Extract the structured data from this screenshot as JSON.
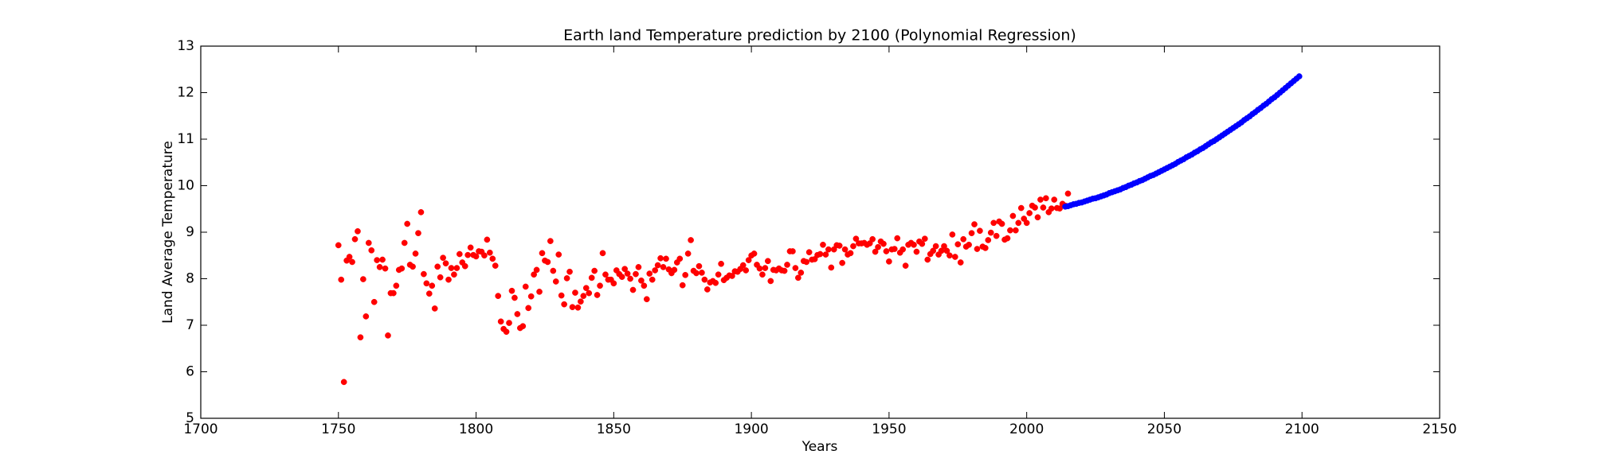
{
  "chart_data": {
    "type": "scatter",
    "title": "Earth land Temperature prediction by 2100 (Polynomial Regression)",
    "x_label": "Years",
    "y_label": "Land Average Temperature",
    "xlim": [
      1700,
      2150
    ],
    "xticks": [
      1700,
      1750,
      1800,
      1850,
      1900,
      1950,
      2000,
      2050,
      2100,
      2150
    ],
    "ylim": [
      5,
      13
    ],
    "yticks": [
      5,
      6,
      7,
      8,
      9,
      10,
      11,
      12,
      13
    ],
    "series": [
      {
        "color": "#ff0000",
        "x": [
          1750,
          1751,
          1752,
          1753,
          1754,
          1755,
          1756,
          1757,
          1758,
          1759,
          1760,
          1761,
          1762,
          1763,
          1764,
          1765,
          1766,
          1767,
          1768,
          1769,
          1770,
          1771,
          1772,
          1773,
          1774,
          1775,
          1776,
          1777,
          1778,
          1779,
          1780,
          1781,
          1782,
          1783,
          1784,
          1785,
          1786,
          1787,
          1788,
          1789,
          1790,
          1791,
          1792,
          1793,
          1794,
          1795,
          1796,
          1797,
          1798,
          1799,
          1800,
          1801,
          1802,
          1803,
          1804,
          1805,
          1806,
          1807,
          1808,
          1809,
          1810,
          1811,
          1812,
          1813,
          1814,
          1815,
          1816,
          1817,
          1818,
          1819,
          1820,
          1821,
          1822,
          1823,
          1824,
          1825,
          1826,
          1827,
          1828,
          1829,
          1830,
          1831,
          1832,
          1833,
          1834,
          1835,
          1836,
          1837,
          1838,
          1839,
          1840,
          1841,
          1842,
          1843,
          1844,
          1845,
          1846,
          1847,
          1848,
          1849,
          1850,
          1851,
          1852,
          1853,
          1854,
          1855,
          1856,
          1857,
          1858,
          1859,
          1860,
          1861,
          1862,
          1863,
          1864,
          1865,
          1866,
          1867,
          1868,
          1869,
          1870,
          1871,
          1872,
          1873,
          1874,
          1875,
          1876,
          1877,
          1878,
          1879,
          1880,
          1881,
          1882,
          1883,
          1884,
          1885,
          1886,
          1887,
          1888,
          1889,
          1890,
          1891,
          1892,
          1893,
          1894,
          1895,
          1896,
          1897,
          1898,
          1899,
          1900,
          1901,
          1902,
          1903,
          1904,
          1905,
          1906,
          1907,
          1908,
          1909,
          1910,
          1911,
          1912,
          1913,
          1914,
          1915,
          1916,
          1917,
          1918,
          1919,
          1920,
          1921,
          1922,
          1923,
          1924,
          1925,
          1926,
          1927,
          1928,
          1929,
          1930,
          1931,
          1932,
          1933,
          1934,
          1935,
          1936,
          1937,
          1938,
          1939,
          1940,
          1941,
          1942,
          1943,
          1944,
          1945,
          1946,
          1947,
          1948,
          1949,
          1950,
          1951,
          1952,
          1953,
          1954,
          1955,
          1956,
          1957,
          1958,
          1959,
          1960,
          1961,
          1962,
          1963,
          1964,
          1965,
          1966,
          1967,
          1968,
          1969,
          1970,
          1971,
          1972,
          1973,
          1974,
          1975,
          1976,
          1977,
          1978,
          1979,
          1980,
          1981,
          1982,
          1983,
          1984,
          1985,
          1986,
          1987,
          1988,
          1989,
          1990,
          1991,
          1992,
          1993,
          1994,
          1995,
          1996,
          1997,
          1998,
          1999,
          2000,
          2001,
          2002,
          2003,
          2004,
          2005,
          2006,
          2007,
          2008,
          2009,
          2010,
          2011,
          2012,
          2013,
          2014,
          2015
        ],
        "values": [
          8.72,
          7.98,
          5.78,
          8.39,
          8.47,
          8.36,
          8.85,
          9.02,
          6.74,
          7.99,
          7.19,
          8.77,
          8.61,
          7.5,
          8.4,
          8.25,
          8.41,
          8.22,
          6.78,
          7.69,
          7.69,
          7.85,
          8.19,
          8.22,
          8.77,
          9.18,
          8.3,
          8.26,
          8.54,
          8.98,
          9.43,
          8.1,
          7.9,
          7.68,
          7.85,
          7.36,
          8.26,
          8.03,
          8.45,
          8.33,
          7.98,
          8.23,
          8.09,
          8.23,
          8.53,
          8.35,
          8.27,
          8.51,
          8.67,
          8.51,
          8.48,
          8.59,
          8.58,
          8.5,
          8.84,
          8.56,
          8.43,
          8.28,
          7.63,
          7.08,
          6.92,
          6.86,
          7.05,
          7.74,
          7.59,
          7.24,
          6.94,
          6.98,
          7.83,
          7.37,
          7.62,
          8.09,
          8.19,
          7.72,
          8.55,
          8.39,
          8.36,
          8.81,
          8.17,
          7.94,
          8.52,
          7.64,
          7.45,
          8.01,
          8.15,
          7.39,
          7.7,
          7.38,
          7.51,
          7.63,
          7.8,
          7.69,
          8.02,
          8.17,
          7.65,
          7.85,
          8.55,
          8.09,
          7.98,
          7.98,
          7.9,
          8.18,
          8.1,
          8.04,
          8.21,
          8.11,
          8.0,
          7.76,
          8.1,
          8.25,
          7.96,
          7.85,
          7.56,
          8.11,
          7.98,
          8.18,
          8.29,
          8.44,
          8.25,
          8.43,
          8.2,
          8.12,
          8.19,
          8.35,
          8.43,
          7.86,
          8.08,
          8.54,
          8.83,
          8.17,
          8.12,
          8.27,
          8.13,
          7.98,
          7.77,
          7.92,
          7.95,
          7.91,
          8.09,
          8.32,
          7.97,
          8.02,
          8.07,
          8.06,
          8.16,
          8.15,
          8.21,
          8.29,
          8.18,
          8.4,
          8.5,
          8.54,
          8.3,
          8.22,
          8.09,
          8.23,
          8.38,
          7.95,
          8.19,
          8.18,
          8.22,
          8.18,
          8.17,
          8.3,
          8.59,
          8.59,
          8.23,
          8.02,
          8.13,
          8.38,
          8.36,
          8.57,
          8.41,
          8.42,
          8.51,
          8.53,
          8.73,
          8.52,
          8.63,
          8.24,
          8.63,
          8.72,
          8.71,
          8.34,
          8.63,
          8.52,
          8.55,
          8.7,
          8.86,
          8.76,
          8.76,
          8.77,
          8.73,
          8.76,
          8.85,
          8.58,
          8.68,
          8.8,
          8.75,
          8.59,
          8.37,
          8.63,
          8.64,
          8.87,
          8.56,
          8.63,
          8.28,
          8.73,
          8.77,
          8.73,
          8.58,
          8.8,
          8.75,
          8.86,
          8.41,
          8.53,
          8.6,
          8.7,
          8.52,
          8.6,
          8.7,
          8.6,
          8.5,
          8.95,
          8.47,
          8.74,
          8.35,
          8.85,
          8.69,
          8.73,
          8.98,
          9.17,
          8.64,
          9.03,
          8.69,
          8.66,
          8.83,
          8.99,
          9.2,
          8.92,
          9.23,
          9.18,
          8.84,
          8.87,
          9.04,
          9.35,
          9.04,
          9.2,
          9.52,
          9.29,
          9.2,
          9.41,
          9.57,
          9.53,
          9.32,
          9.7,
          9.53,
          9.73,
          9.43,
          9.51,
          9.7,
          9.52,
          9.51,
          9.61,
          9.57,
          9.83
        ]
      },
      {
        "color": "#0000ff",
        "x": [
          2014,
          2015,
          2016,
          2017,
          2018,
          2019,
          2020,
          2021,
          2022,
          2023,
          2024,
          2025,
          2026,
          2027,
          2028,
          2029,
          2030,
          2031,
          2032,
          2033,
          2034,
          2035,
          2036,
          2037,
          2038,
          2039,
          2040,
          2041,
          2042,
          2043,
          2044,
          2045,
          2046,
          2047,
          2048,
          2049,
          2050,
          2051,
          2052,
          2053,
          2054,
          2055,
          2056,
          2057,
          2058,
          2059,
          2060,
          2061,
          2062,
          2063,
          2064,
          2065,
          2066,
          2067,
          2068,
          2069,
          2070,
          2071,
          2072,
          2073,
          2074,
          2075,
          2076,
          2077,
          2078,
          2079,
          2080,
          2081,
          2082,
          2083,
          2084,
          2085,
          2086,
          2087,
          2088,
          2089,
          2090,
          2091,
          2092,
          2093,
          2094,
          2095,
          2096,
          2097,
          2098,
          2099
        ],
        "values": [
          9.55,
          9.56,
          9.58,
          9.6,
          9.61,
          9.63,
          9.64,
          9.66,
          9.68,
          9.7,
          9.72,
          9.73,
          9.75,
          9.77,
          9.79,
          9.81,
          9.84,
          9.86,
          9.88,
          9.9,
          9.92,
          9.95,
          9.97,
          10.0,
          10.02,
          10.05,
          10.07,
          10.1,
          10.12,
          10.15,
          10.18,
          10.21,
          10.23,
          10.26,
          10.29,
          10.32,
          10.35,
          10.38,
          10.41,
          10.44,
          10.47,
          10.51,
          10.54,
          10.57,
          10.61,
          10.64,
          10.67,
          10.71,
          10.74,
          10.78,
          10.81,
          10.85,
          10.89,
          10.93,
          10.96,
          11.0,
          11.04,
          11.08,
          11.12,
          11.16,
          11.2,
          11.24,
          11.28,
          11.32,
          11.36,
          11.41,
          11.45,
          11.49,
          11.54,
          11.58,
          11.63,
          11.67,
          11.72,
          11.76,
          11.81,
          11.86,
          11.9,
          11.95,
          12.0,
          12.05,
          12.1,
          12.15,
          12.2,
          12.25,
          12.3,
          12.35
        ]
      }
    ]
  }
}
